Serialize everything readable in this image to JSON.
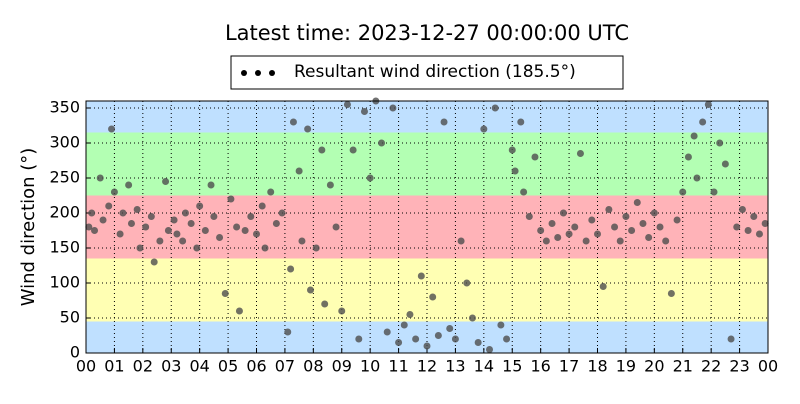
{
  "chart_data": {
    "type": "scatter",
    "title": "Latest time: 2023-12-27 00:00:00 UTC",
    "ylabel": "Wind direction (°)",
    "xlim": [
      0,
      24
    ],
    "ylim": [
      0,
      360
    ],
    "xticks": [
      {
        "value": 0,
        "label": "00"
      },
      {
        "value": 1,
        "label": "01"
      },
      {
        "value": 2,
        "label": "02"
      },
      {
        "value": 3,
        "label": "03"
      },
      {
        "value": 4,
        "label": "04"
      },
      {
        "value": 5,
        "label": "05"
      },
      {
        "value": 6,
        "label": "06"
      },
      {
        "value": 7,
        "label": "07"
      },
      {
        "value": 8,
        "label": "08"
      },
      {
        "value": 9,
        "label": "09"
      },
      {
        "value": 10,
        "label": "10"
      },
      {
        "value": 11,
        "label": "11"
      },
      {
        "value": 12,
        "label": "12"
      },
      {
        "value": 13,
        "label": "13"
      },
      {
        "value": 14,
        "label": "14"
      },
      {
        "value": 15,
        "label": "15"
      },
      {
        "value": 16,
        "label": "16"
      },
      {
        "value": 17,
        "label": "17"
      },
      {
        "value": 18,
        "label": "18"
      },
      {
        "value": 19,
        "label": "19"
      },
      {
        "value": 20,
        "label": "20"
      },
      {
        "value": 21,
        "label": "21"
      },
      {
        "value": 22,
        "label": "22"
      },
      {
        "value": 23,
        "label": "23"
      },
      {
        "value": 24,
        "label": "00"
      }
    ],
    "yticks": [
      0,
      50,
      100,
      150,
      200,
      250,
      300,
      350
    ],
    "grid": true,
    "bands": [
      {
        "from": 0,
        "to": 45,
        "color": "#bfe0ff"
      },
      {
        "from": 45,
        "to": 135,
        "color": "#ffffb3"
      },
      {
        "from": 135,
        "to": 225,
        "color": "#ffb3b8"
      },
      {
        "from": 225,
        "to": 315,
        "color": "#b3ffb3"
      },
      {
        "from": 315,
        "to": 360,
        "color": "#bfe0ff"
      }
    ],
    "legend": "top",
    "series": [
      {
        "name": "Resultant wind direction (185.5°)",
        "color": "#4d4d4d",
        "x": [
          0.1,
          0.2,
          0.3,
          0.5,
          0.6,
          0.8,
          0.9,
          1.0,
          1.2,
          1.3,
          1.5,
          1.6,
          1.8,
          1.9,
          2.1,
          2.3,
          2.4,
          2.6,
          2.8,
          2.9,
          3.1,
          3.2,
          3.4,
          3.5,
          3.7,
          3.9,
          4.0,
          4.2,
          4.4,
          4.5,
          4.7,
          4.9,
          5.1,
          5.3,
          5.4,
          5.6,
          5.8,
          6.0,
          6.2,
          6.3,
          6.5,
          6.7,
          6.9,
          7.1,
          7.2,
          7.3,
          7.5,
          7.6,
          7.8,
          7.9,
          8.1,
          8.3,
          8.4,
          8.6,
          8.8,
          9.0,
          9.2,
          9.4,
          9.6,
          9.8,
          10.0,
          10.2,
          10.4,
          10.6,
          10.8,
          11.0,
          11.2,
          11.4,
          11.6,
          11.8,
          12.0,
          12.2,
          12.4,
          12.6,
          12.8,
          13.0,
          13.2,
          13.4,
          13.6,
          13.8,
          14.0,
          14.2,
          14.4,
          14.6,
          14.8,
          15.0,
          15.1,
          15.3,
          15.4,
          15.6,
          15.8,
          16.0,
          16.2,
          16.4,
          16.6,
          16.8,
          17.0,
          17.2,
          17.4,
          17.6,
          17.8,
          18.0,
          18.2,
          18.4,
          18.6,
          18.8,
          19.0,
          19.2,
          19.4,
          19.6,
          19.8,
          20.0,
          20.2,
          20.4,
          20.6,
          20.8,
          21.0,
          21.2,
          21.4,
          21.5,
          21.7,
          21.9,
          22.1,
          22.3,
          22.5,
          22.7,
          22.9,
          23.1,
          23.3,
          23.5,
          23.7,
          23.9
        ],
        "values": [
          180,
          200,
          175,
          250,
          190,
          210,
          320,
          230,
          170,
          200,
          240,
          185,
          205,
          150,
          180,
          195,
          130,
          160,
          245,
          175,
          190,
          170,
          160,
          200,
          185,
          150,
          210,
          175,
          240,
          195,
          165,
          85,
          220,
          180,
          60,
          175,
          195,
          170,
          210,
          150,
          230,
          185,
          200,
          30,
          120,
          330,
          260,
          160,
          320,
          90,
          150,
          290,
          70,
          240,
          180,
          60,
          355,
          290,
          20,
          345,
          250,
          360,
          300,
          30,
          350,
          15,
          40,
          55,
          20,
          110,
          10,
          80,
          25,
          330,
          35,
          20,
          160,
          100,
          50,
          15,
          320,
          5,
          350,
          40,
          20,
          290,
          260,
          330,
          230,
          195,
          280,
          175,
          160,
          185,
          165,
          200,
          170,
          180,
          285,
          160,
          190,
          170,
          95,
          205,
          180,
          160,
          195,
          175,
          215,
          185,
          165,
          200,
          180,
          160,
          85,
          190,
          230,
          280,
          310,
          250,
          330,
          355,
          230,
          300,
          270,
          20,
          180,
          205,
          175,
          195,
          170,
          185
        ]
      }
    ]
  }
}
